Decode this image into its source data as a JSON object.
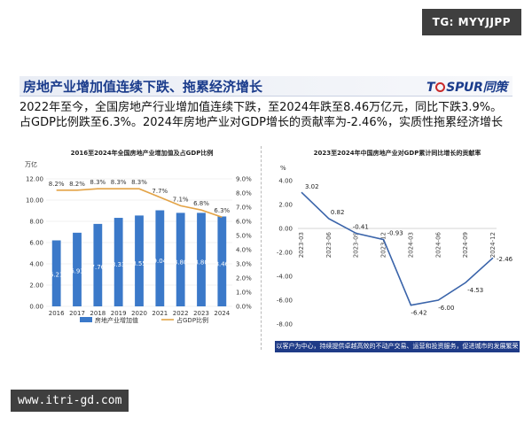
{
  "watermark_top": "TG: MYYJJPP",
  "watermark_bottom": "www.itri-gd.com",
  "slide": {
    "title": "房地产业增加值连续下跌、拖累经济增长",
    "logo_text": "T",
    "logo_rest": "SPUR",
    "logo_cn": "同策",
    "body": "2022年至今，全国房地产行业增加值连续下跌，至2024年跌至8.46万亿元，同比下跌3.9%。占GDP比例跌至6.3%。2024年房地产业对GDP增长的贡献率为-2.46%，实质性拖累经济增长",
    "footer": "以客户为中心，持续提供卓越高效的不动产交易、运营和投资服务，促进城市的发展繁荣"
  },
  "colors": {
    "bar": "#3b79c9",
    "line": "#e3a346",
    "line2": "#3a64aa",
    "brand": "#1b3c8c"
  },
  "chart_data": [
    {
      "type": "bar+line",
      "title": "2016至2024年全国房地产业增加值及占GDP比例",
      "categories": [
        "2016",
        "2017",
        "2018",
        "2019",
        "2020",
        "2021",
        "2022",
        "2023",
        "2024"
      ],
      "series": [
        {
          "name": "房地产业增加值",
          "type": "bar",
          "axis": "left",
          "values": [
            6.21,
            6.93,
            7.76,
            8.33,
            8.55,
            9.04,
            8.8,
            8.8,
            8.46
          ],
          "labels": [
            "6.21",
            "6.93",
            "7.76",
            "8.33",
            "8.55",
            "9.04",
            "8.80",
            "8.80",
            "8.46"
          ]
        },
        {
          "name": "占GDP比例",
          "type": "line",
          "axis": "right",
          "values": [
            8.2,
            8.2,
            8.3,
            8.3,
            8.3,
            7.7,
            7.1,
            6.8,
            6.3
          ],
          "labels": [
            "8.2%",
            "8.2%",
            "8.3%",
            "8.3%",
            "8.3%",
            "7.7%",
            "7.1%",
            "6.8%",
            "6.3%"
          ]
        }
      ],
      "ylabel_left": "万亿",
      "ylim_left": [
        0,
        12
      ],
      "yticks_left": [
        "0.00",
        "2.00",
        "4.00",
        "6.00",
        "8.00",
        "10.00",
        "12.00"
      ],
      "ylim_right": [
        0,
        9
      ],
      "yticks_right": [
        "0.0%",
        "1.0%",
        "2.0%",
        "3.0%",
        "4.0%",
        "5.0%",
        "6.0%",
        "7.0%",
        "8.0%",
        "9.0%"
      ],
      "legend_position": "bottom",
      "grid": true
    },
    {
      "type": "line",
      "title": "2023至2024年中国房地产业对GDP累计同比增长的贡献率",
      "categories": [
        "2023-03",
        "2023-06",
        "2023-09",
        "2023-12",
        "2024-03",
        "2024-06",
        "2024-09",
        "2024-12"
      ],
      "series": [
        {
          "name": "",
          "values": [
            3.02,
            0.82,
            -0.41,
            -0.93,
            -6.42,
            -6.0,
            -4.53,
            -2.46
          ],
          "labels": [
            "3.02",
            "0.82",
            "-0.41",
            "-0.93",
            "-6.42",
            "-6.00",
            "-4.53",
            "-2.46"
          ]
        }
      ],
      "ylabel": "%",
      "ylim": [
        -8,
        4
      ],
      "yticks": [
        "-8.00",
        "-6.00",
        "-4.00",
        "-2.00",
        "0.00",
        "2.00",
        "4.00"
      ],
      "grid": false
    }
  ]
}
